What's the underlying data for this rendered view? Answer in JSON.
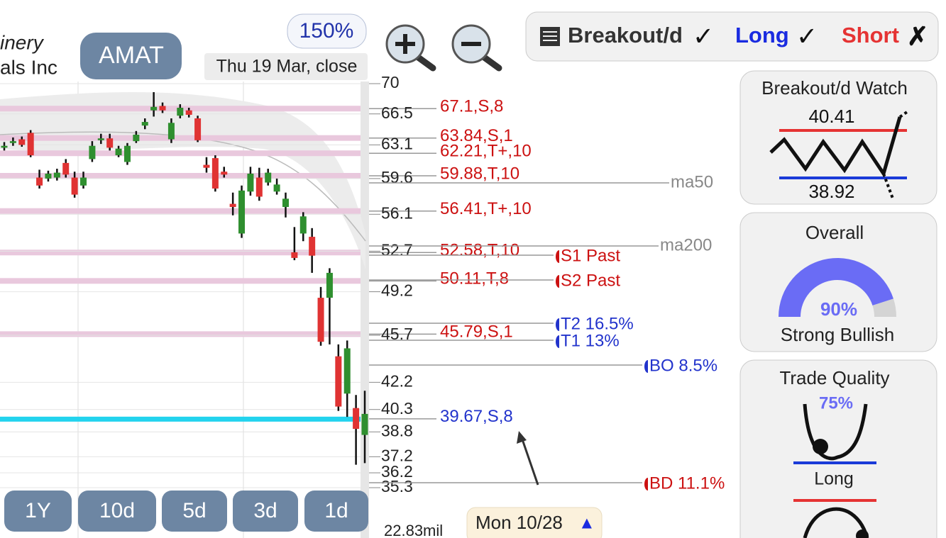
{
  "header": {
    "name_line1": "inery",
    "name_line2": "als Inc",
    "ticker": "AMAT",
    "zoom": "150%",
    "date": "Thu 19 Mar, close"
  },
  "signal_bar": {
    "pattern": "Breakout/d",
    "pattern_mark": "✓",
    "long": "Long",
    "long_mark": "✓",
    "short": "Short",
    "short_mark": "✗"
  },
  "price_chart": {
    "ylim": [
      35.3,
      70
    ],
    "log_scale": true,
    "up_color": "#2f8f2f",
    "down_color": "#e03333",
    "yticks": [
      70,
      66.5,
      63.1,
      59.6,
      56.1,
      52.7,
      49.2,
      45.7,
      42.2,
      40.3,
      38.8,
      37.2,
      36.2,
      35.3
    ],
    "candles": [
      {
        "open": 62.8,
        "high": 63.4,
        "low": 62.5,
        "close": 63.0
      },
      {
        "open": 63.3,
        "high": 63.9,
        "low": 63.0,
        "close": 63.5
      },
      {
        "open": 63.7,
        "high": 64.0,
        "low": 62.9,
        "close": 63.1
      },
      {
        "open": 64.4,
        "high": 64.7,
        "low": 61.8,
        "close": 62.0
      },
      {
        "open": 59.7,
        "high": 60.5,
        "low": 58.6,
        "close": 58.9
      },
      {
        "open": 59.6,
        "high": 60.4,
        "low": 59.3,
        "close": 60.1
      },
      {
        "open": 59.7,
        "high": 60.6,
        "low": 59.4,
        "close": 60.2
      },
      {
        "open": 61.2,
        "high": 61.6,
        "low": 59.7,
        "close": 60.0
      },
      {
        "open": 59.7,
        "high": 60.3,
        "low": 57.7,
        "close": 58.0
      },
      {
        "open": 58.9,
        "high": 60.3,
        "low": 58.6,
        "close": 59.7
      },
      {
        "open": 61.6,
        "high": 63.5,
        "low": 61.3,
        "close": 63.0
      },
      {
        "open": 63.6,
        "high": 64.3,
        "low": 63.2,
        "close": 63.8
      },
      {
        "open": 63.8,
        "high": 64.3,
        "low": 62.5,
        "close": 62.8
      },
      {
        "open": 62.0,
        "high": 63.0,
        "low": 61.8,
        "close": 62.7
      },
      {
        "open": 61.3,
        "high": 63.3,
        "low": 61.0,
        "close": 63.0
      },
      {
        "open": 63.5,
        "high": 64.6,
        "low": 63.3,
        "close": 64.2
      },
      {
        "open": 65.2,
        "high": 66.0,
        "low": 64.8,
        "close": 65.6
      },
      {
        "open": 66.9,
        "high": 69.0,
        "low": 66.2,
        "close": 67.3
      },
      {
        "open": 67.4,
        "high": 67.8,
        "low": 66.6,
        "close": 66.9
      },
      {
        "open": 63.7,
        "high": 66.0,
        "low": 63.3,
        "close": 65.5
      },
      {
        "open": 66.3,
        "high": 67.6,
        "low": 66.0,
        "close": 67.2
      },
      {
        "open": 66.9,
        "high": 67.2,
        "low": 66.1,
        "close": 66.4
      },
      {
        "open": 66.0,
        "high": 66.3,
        "low": 63.4,
        "close": 63.6
      },
      {
        "open": 61.0,
        "high": 61.8,
        "low": 60.2,
        "close": 60.7
      },
      {
        "open": 61.7,
        "high": 62.0,
        "low": 58.3,
        "close": 58.6
      },
      {
        "open": 60.3,
        "high": 60.8,
        "low": 59.7,
        "close": 60.0
      },
      {
        "open": 57.1,
        "high": 58.2,
        "low": 56.0,
        "close": 56.8
      },
      {
        "open": 54.3,
        "high": 58.9,
        "low": 53.9,
        "close": 58.4
      },
      {
        "open": 58.3,
        "high": 60.8,
        "low": 57.9,
        "close": 60.1
      },
      {
        "open": 59.7,
        "high": 60.7,
        "low": 57.4,
        "close": 57.8
      },
      {
        "open": 59.2,
        "high": 60.6,
        "low": 58.9,
        "close": 60.2
      },
      {
        "open": 58.3,
        "high": 59.6,
        "low": 58.0,
        "close": 59.0
      },
      {
        "open": 56.8,
        "high": 58.2,
        "low": 55.8,
        "close": 57.6
      },
      {
        "open": 52.6,
        "high": 54.9,
        "low": 51.9,
        "close": 52.1
      },
      {
        "open": 54.3,
        "high": 56.3,
        "low": 53.6,
        "close": 55.9
      },
      {
        "open": 54.0,
        "high": 54.8,
        "low": 50.8,
        "close": 52.3
      },
      {
        "open": 48.7,
        "high": 49.6,
        "low": 44.9,
        "close": 45.2
      },
      {
        "open": 48.7,
        "high": 51.2,
        "low": 45.0,
        "close": 50.8
      },
      {
        "open": 44.1,
        "high": 45.0,
        "low": 40.2,
        "close": 40.5
      },
      {
        "open": 41.4,
        "high": 45.3,
        "low": 39.8,
        "close": 44.7
      },
      {
        "open": 40.4,
        "high": 41.3,
        "low": 36.7,
        "close": 39.0
      },
      {
        "open": 38.6,
        "high": 41.6,
        "low": 36.8,
        "close": 40.0
      }
    ],
    "levels": [
      {
        "value": 67.1,
        "label": "67.1,S,8",
        "color": "#cc1111",
        "band": "#e9c8dd"
      },
      {
        "value": 63.84,
        "label": "63.84,S,1",
        "color": "#cc1111",
        "band": "#e9c8dd"
      },
      {
        "value": 62.21,
        "label": "62.21,T+,10",
        "color": "#cc1111",
        "band": "#e9c8dd"
      },
      {
        "value": 59.88,
        "label": "59.88,T,10",
        "color": "#cc1111",
        "band": "#e9c8dd"
      },
      {
        "value": 56.41,
        "label": "56.41,T+,10",
        "color": "#cc1111",
        "band": "#e9c8dd"
      },
      {
        "value": 52.58,
        "label": "52.58,T,10",
        "color": "#cc1111",
        "band": "#e9c8dd"
      },
      {
        "value": 50.11,
        "label": "50.11,T,8",
        "color": "#cc1111",
        "band": "#e9c8dd"
      },
      {
        "value": 45.79,
        "label": "45.79,S,1",
        "color": "#cc1111",
        "band": "#e9c8dd"
      },
      {
        "value": 39.67,
        "label": "39.67,S,8",
        "color": "#2233cc",
        "band": "#22d3ee"
      }
    ],
    "ma_labels": [
      "ma50",
      "ma200"
    ],
    "targets": [
      {
        "label": "S1 Past",
        "color": "#cc1111"
      },
      {
        "label": "S2 Past",
        "color": "#cc1111"
      },
      {
        "label": "T2 16.5%",
        "color": "#2233cc"
      },
      {
        "label": "T1 13%",
        "color": "#2233cc"
      },
      {
        "label": "BO 8.5%",
        "color": "#2233cc"
      },
      {
        "label": "BD 11.1%",
        "color": "#cc1111"
      }
    ],
    "volume": "22.83mil"
  },
  "periods": [
    "1Y",
    "10d",
    "5d",
    "3d",
    "1d"
  ],
  "date_tag": {
    "label": "Mon 10/28",
    "arrow": "▲"
  },
  "watch": {
    "title": "Breakout/d Watch",
    "upper": 40.41,
    "lower": 38.92
  },
  "overall": {
    "title": "Overall",
    "score": {
      "value": 90,
      "label": "90%"
    },
    "verdict": "Strong Bullish"
  },
  "trade_quality": {
    "title": "Trade Quality",
    "score": "75%",
    "side": "Long"
  }
}
